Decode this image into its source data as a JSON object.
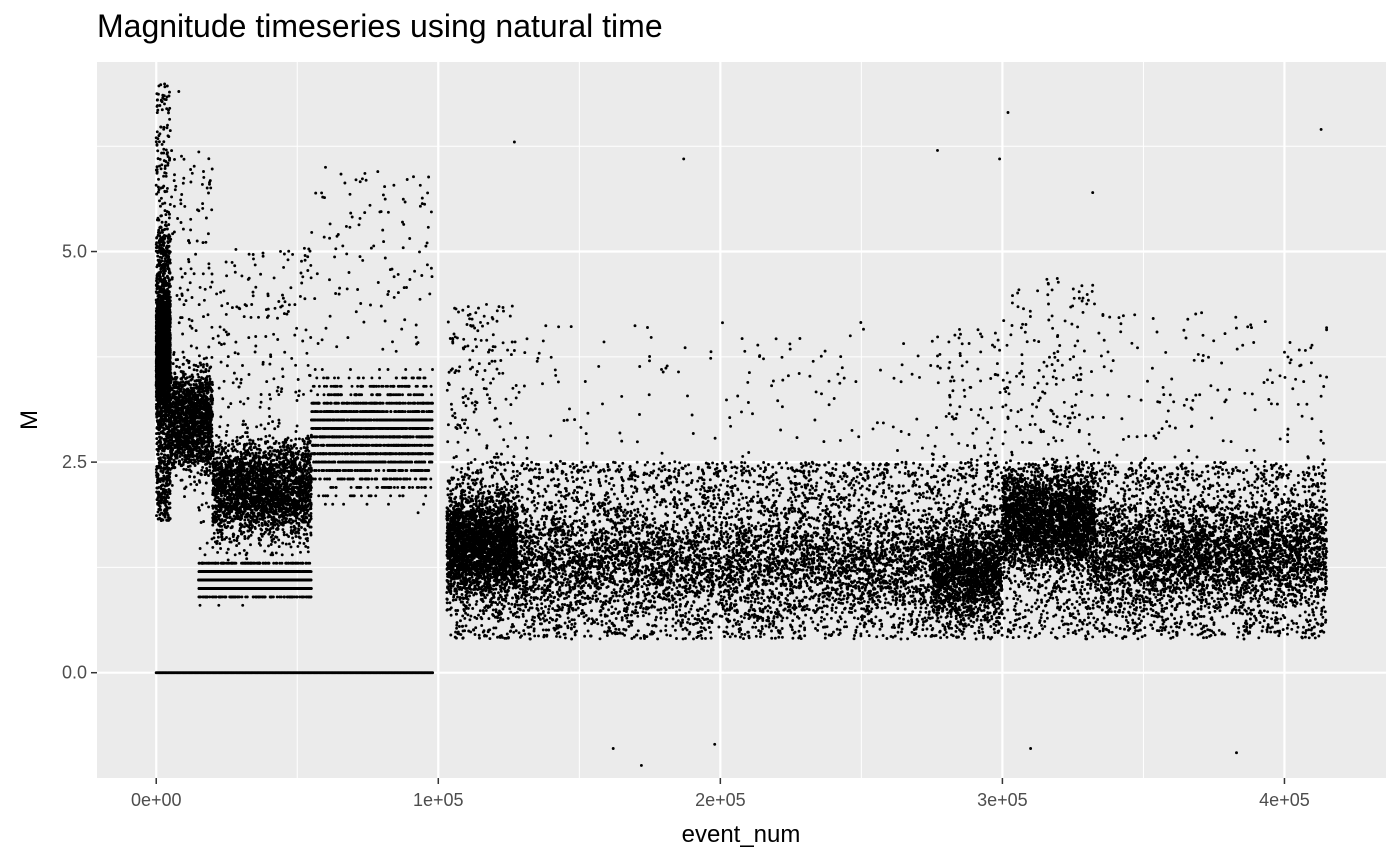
{
  "chart_data": {
    "type": "scatter",
    "title": "Magnitude timeseries using natural time",
    "xlabel": "event_num",
    "ylabel": "M",
    "xlim": [
      -21000,
      436000
    ],
    "ylim": [
      -1.25,
      7.25
    ],
    "x_ticks": [
      0,
      100000,
      200000,
      300000,
      400000
    ],
    "x_tick_labels": [
      "0e+00",
      "1e+05",
      "2e+05",
      "3e+05",
      "4e+05"
    ],
    "y_ticks": [
      0,
      2.5,
      5
    ],
    "y_tick_labels": [
      "0.0",
      "2.5",
      "5.0"
    ],
    "grid": true,
    "legend": "none",
    "x_range": [
      0,
      415000
    ],
    "colors": {
      "panel": "#ebebeb",
      "grid": "#ffffff",
      "points": "#000000"
    },
    "series": [
      {
        "segments": [
          {
            "x": [
              0,
              5000
            ],
            "y_center": 3.8,
            "y_spread": 1.0,
            "density": "very high"
          },
          {
            "x": [
              5000,
              20000
            ],
            "y_center": 3.0,
            "y_spread": 1.0,
            "density": "high"
          },
          {
            "x": [
              20000,
              55000
            ],
            "y_center": 2.2,
            "y_spread": 0.9,
            "density": "very high"
          },
          {
            "x": [
              15000,
              55000
            ],
            "y_center": 1.1,
            "y_spread": 0.3,
            "density": "banded"
          },
          {
            "x": [
              55000,
              98000
            ],
            "y_center": 2.8,
            "y_spread": 1.0,
            "density": "banded"
          },
          {
            "x": [
              0,
              98000
            ],
            "y_center": 0.0,
            "y_spread": 0.0,
            "density": "line"
          },
          {
            "x": [
              103000,
              128000
            ],
            "y_center": 1.5,
            "y_spread": 0.9,
            "density": "very high"
          },
          {
            "x": [
              128000,
              275000
            ],
            "y_center": 1.3,
            "y_spread": 0.9,
            "density": "very high"
          },
          {
            "x": [
              275000,
              300000
            ],
            "y_center": 1.2,
            "y_spread": 0.9,
            "density": "high"
          },
          {
            "x": [
              300000,
              333000
            ],
            "y_center": 1.8,
            "y_spread": 0.9,
            "density": "very high"
          },
          {
            "x": [
              333000,
              415000
            ],
            "y_center": 1.4,
            "y_spread": 0.9,
            "density": "very high"
          }
        ],
        "notable_points": [
          {
            "x": 8000,
            "y": 6.9
          },
          {
            "x": 4000,
            "y": 6.5
          },
          {
            "x": 0,
            "y": 6.35
          },
          {
            "x": 127000,
            "y": 6.3
          },
          {
            "x": 187000,
            "y": 6.1
          },
          {
            "x": 277000,
            "y": 6.2
          },
          {
            "x": 302000,
            "y": 6.65
          },
          {
            "x": 299000,
            "y": 6.1
          },
          {
            "x": 413000,
            "y": 6.45
          },
          {
            "x": 332000,
            "y": 5.7
          },
          {
            "x": 60000,
            "y": 6.0
          },
          {
            "x": 172000,
            "y": -1.1
          },
          {
            "x": 383000,
            "y": -0.95
          },
          {
            "x": 310000,
            "y": -0.9
          },
          {
            "x": 162000,
            "y": -0.9
          },
          {
            "x": 198000,
            "y": -0.85
          }
        ]
      }
    ]
  }
}
